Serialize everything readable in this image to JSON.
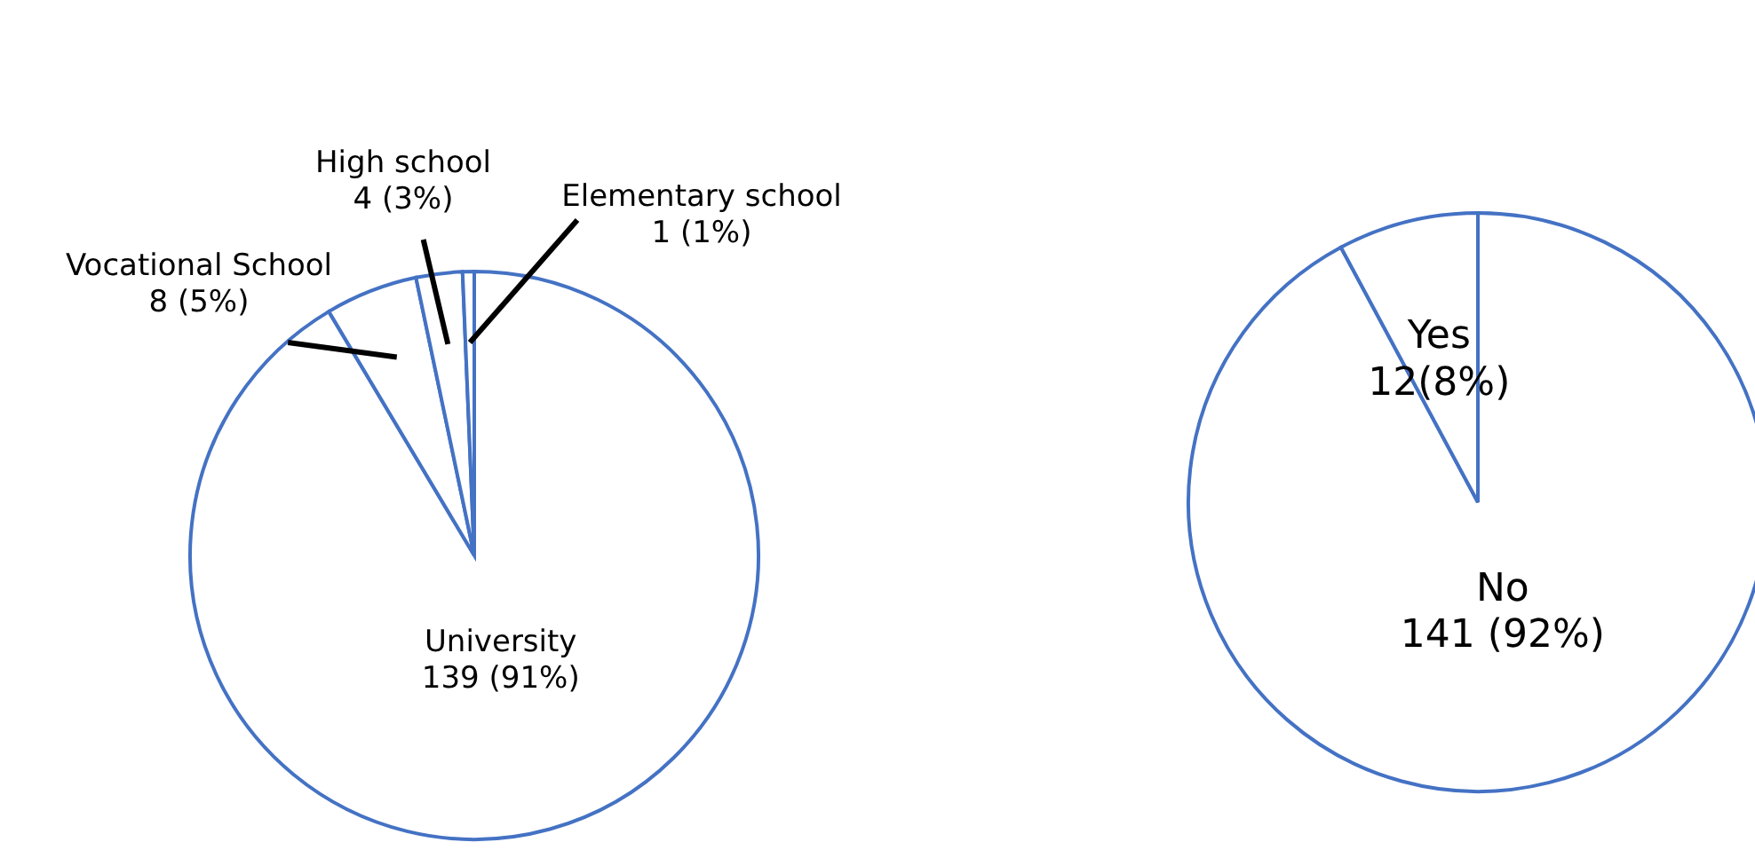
{
  "chart_data": [
    {
      "type": "pie",
      "categories": [
        "University",
        "Vocational School",
        "High school",
        "Elementary school"
      ],
      "values": [
        139,
        8,
        4,
        1
      ],
      "value_labels": [
        "139 (91%)",
        "8 (5%)",
        "4 (3%)",
        "1 (1%)"
      ],
      "colors": [
        "#ffffff",
        "#ffffff",
        "#ffffff",
        "#ffffff"
      ]
    },
    {
      "type": "pie",
      "categories": [
        "No",
        "Yes"
      ],
      "values": [
        141,
        12
      ],
      "value_labels": [
        "141 (92%)",
        "12(8%)"
      ],
      "colors": [
        "#ffffff",
        "#ffffff"
      ]
    }
  ]
}
